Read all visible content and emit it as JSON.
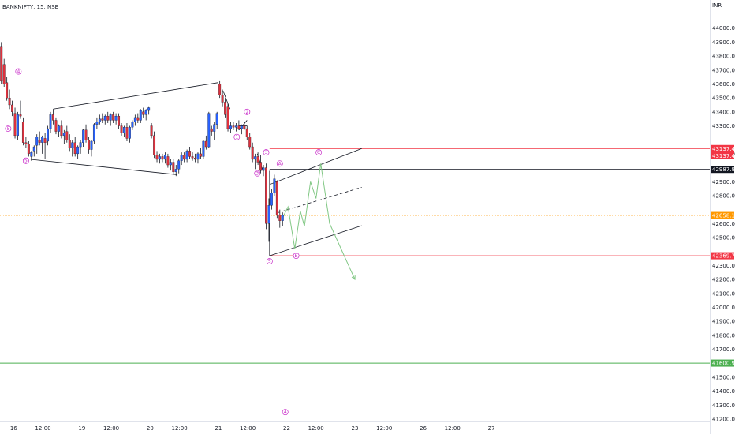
{
  "header": {
    "symbol_title": "BANKNIFTY, 15, NSE",
    "currency": "INR"
  },
  "chart_data": {
    "type": "candlestick",
    "title": "BANKNIFTY, 15, NSE",
    "ylabel": "INR",
    "ylim": [
      41200,
      44100
    ],
    "xlim": [
      0,
      10.4
    ],
    "grid": false,
    "x_ticks": [
      {
        "label": "16",
        "x": 0.2
      },
      {
        "label": "12:00",
        "x": 0.63
      },
      {
        "label": "19",
        "x": 1.2
      },
      {
        "label": "12:00",
        "x": 1.63
      },
      {
        "label": "20",
        "x": 2.2
      },
      {
        "label": "12:00",
        "x": 2.63
      },
      {
        "label": "21",
        "x": 3.2
      },
      {
        "label": "12:00",
        "x": 3.63
      },
      {
        "label": "22",
        "x": 4.2
      },
      {
        "label": "12:00",
        "x": 4.63
      },
      {
        "label": "23",
        "x": 5.2
      },
      {
        "label": "12:00",
        "x": 5.63
      },
      {
        "label": "26",
        "x": 6.2
      },
      {
        "label": "12:00",
        "x": 6.63
      },
      {
        "label": "27",
        "x": 7.2
      }
    ],
    "y_ticks": [
      44000,
      43900,
      43800,
      43700,
      43600,
      43500,
      43400,
      43300,
      43100,
      42900,
      42800,
      42600,
      42500,
      42300,
      42200,
      42100,
      42000,
      41900,
      41800,
      41700,
      41500,
      41400,
      41300,
      41200
    ],
    "y_tick_labels": [
      "44000.00",
      "43900.00",
      "43800.00",
      "43700.00",
      "43600.00",
      "43500.00",
      "43400.00",
      "43300.00",
      "43100.00",
      "42900.00",
      "42800.00",
      "42600.00",
      "42500.00",
      "42300.00",
      "42200.00",
      "42100.00",
      "42000.00",
      "41900.00",
      "41800.00",
      "41700.00",
      "41500.00",
      "41400.00",
      "41300.00",
      "41200.00"
    ],
    "price_labels": [
      {
        "text": "43137.40",
        "value": 43137.4,
        "bg": "#f23645",
        "fg": "#ffffff"
      },
      {
        "text": "43137.40",
        "value": 43137.4,
        "bg": "#f23645",
        "fg": "#ffffff"
      },
      {
        "text": "42987.95",
        "value": 42987.95,
        "bg": "#131722",
        "fg": "#ffffff"
      },
      {
        "text": "42658.15",
        "value": 42658.15,
        "bg": "#ff9800",
        "fg": "#ffffff"
      },
      {
        "text": "42369.70",
        "value": 42369.7,
        "bg": "#f23645",
        "fg": "#ffffff"
      },
      {
        "text": "41600.95",
        "value": 41600.95,
        "bg": "#4caf50",
        "fg": "#ffffff"
      }
    ],
    "horizontal_lines": [
      {
        "value": 43137.4,
        "color": "#f23645",
        "x_start": 3.95
      },
      {
        "value": 42987.95,
        "color": "#131722",
        "x_start": 3.95
      },
      {
        "value": 42658.15,
        "color": "#ffb74d",
        "x_start": 0,
        "style": "dotted"
      },
      {
        "value": 42369.7,
        "color": "#f23645",
        "x_start": 3.95
      },
      {
        "value": 41600.95,
        "color": "#4caf50",
        "x_start": 0
      }
    ],
    "trend_lines": [
      {
        "x1": 0.78,
        "y1": 43420,
        "x2": 3.2,
        "y2": 43610,
        "color": "#131722"
      },
      {
        "x1": 0.45,
        "y1": 43060,
        "x2": 2.6,
        "y2": 42950,
        "color": "#131722"
      },
      {
        "x1": 3.27,
        "y1": 43550,
        "x2": 3.37,
        "y2": 43420,
        "color": "#131722"
      },
      {
        "x1": 3.5,
        "y1": 43270,
        "x2": 3.62,
        "y2": 43340,
        "color": "#131722"
      },
      {
        "x1": 3.5,
        "y1": 43300,
        "x2": 3.62,
        "y2": 43300,
        "color": "#131722"
      },
      {
        "x1": 3.77,
        "y1": 43100,
        "x2": 3.85,
        "y2": 42980,
        "color": "#131722"
      },
      {
        "x1": 3.95,
        "y1": 42880,
        "x2": 5.3,
        "y2": 43137.4,
        "color": "#131722"
      },
      {
        "x1": 3.95,
        "y1": 42369.7,
        "x2": 5.3,
        "y2": 42585,
        "color": "#131722"
      },
      {
        "x1": 4.05,
        "y1": 42675,
        "x2": 5.3,
        "y2": 42860,
        "color": "#131722",
        "style": "dashed"
      },
      {
        "x1": 3.95,
        "y1": 42369.7,
        "x2": 3.95,
        "y2": 42978,
        "color": "#131722"
      }
    ],
    "projection_path": {
      "color": "#81c784",
      "points": [
        [
          4.15,
          42650
        ],
        [
          4.22,
          42720
        ],
        [
          4.32,
          42420
        ],
        [
          4.4,
          42690
        ],
        [
          4.46,
          42580
        ],
        [
          4.55,
          42900
        ],
        [
          4.63,
          42780
        ],
        [
          4.7,
          43030
        ],
        [
          4.83,
          42600
        ],
        [
          5.2,
          42200
        ]
      ]
    },
    "wave_labels": [
      {
        "text": "4",
        "x": 0.27,
        "y": 43690
      },
      {
        "text": "5",
        "x": 0.12,
        "y": 43280
      },
      {
        "text": "5",
        "x": 0.38,
        "y": 43050
      },
      {
        "text": "2",
        "x": 3.62,
        "y": 43400
      },
      {
        "text": "1",
        "x": 3.47,
        "y": 43220
      },
      {
        "text": "3",
        "x": 3.9,
        "y": 43110
      },
      {
        "text": "3",
        "x": 3.77,
        "y": 42960
      },
      {
        "text": "5",
        "x": 3.95,
        "y": 42330
      },
      {
        "text": "A",
        "x": 4.1,
        "y": 43030
      },
      {
        "text": "B",
        "x": 4.34,
        "y": 42370
      },
      {
        "text": "C",
        "x": 4.67,
        "y": 43110
      },
      {
        "text": "4",
        "x": 4.18,
        "y": 41250
      }
    ],
    "candles": [
      {
        "x": 0.02,
        "o": 43870,
        "h": 43900,
        "l": 43600,
        "c": 43620
      },
      {
        "x": 0.06,
        "o": 43740,
        "h": 43780,
        "l": 43580,
        "c": 43600
      },
      {
        "x": 0.1,
        "o": 43610,
        "h": 43650,
        "l": 43480,
        "c": 43500
      },
      {
        "x": 0.14,
        "o": 43500,
        "h": 43560,
        "l": 43420,
        "c": 43450
      },
      {
        "x": 0.18,
        "o": 43450,
        "h": 43480,
        "l": 43370,
        "c": 43400
      },
      {
        "x": 0.22,
        "o": 43390,
        "h": 43430,
        "l": 43210,
        "c": 43230
      },
      {
        "x": 0.26,
        "o": 43230,
        "h": 43400,
        "l": 43200,
        "c": 43380
      },
      {
        "x": 0.3,
        "o": 43380,
        "h": 43480,
        "l": 43350,
        "c": 43370
      },
      {
        "x": 0.34,
        "o": 43330,
        "h": 43360,
        "l": 43160,
        "c": 43180
      },
      {
        "x": 0.38,
        "o": 43180,
        "h": 43220,
        "l": 43140,
        "c": 43170
      },
      {
        "x": 0.42,
        "o": 43170,
        "h": 43190,
        "l": 43080,
        "c": 43100
      },
      {
        "x": 0.46,
        "o": 43080,
        "h": 43120,
        "l": 43050,
        "c": 43110
      },
      {
        "x": 0.5,
        "o": 43120,
        "h": 43160,
        "l": 43080,
        "c": 43150
      },
      {
        "x": 0.54,
        "o": 43160,
        "h": 43240,
        "l": 43100,
        "c": 43220
      },
      {
        "x": 0.58,
        "o": 43200,
        "h": 43260,
        "l": 43160,
        "c": 43180
      },
      {
        "x": 0.62,
        "o": 43180,
        "h": 43230,
        "l": 43100,
        "c": 43220
      },
      {
        "x": 0.66,
        "o": 43210,
        "h": 43250,
        "l": 43060,
        "c": 43180
      },
      {
        "x": 0.7,
        "o": 43190,
        "h": 43300,
        "l": 43160,
        "c": 43280
      },
      {
        "x": 0.74,
        "o": 43280,
        "h": 43400,
        "l": 43250,
        "c": 43380
      },
      {
        "x": 0.78,
        "o": 43380,
        "h": 43420,
        "l": 43310,
        "c": 43340
      },
      {
        "x": 0.82,
        "o": 43340,
        "h": 43360,
        "l": 43240,
        "c": 43260
      },
      {
        "x": 0.86,
        "o": 43260,
        "h": 43310,
        "l": 43220,
        "c": 43300
      },
      {
        "x": 0.9,
        "o": 43300,
        "h": 43340,
        "l": 43210,
        "c": 43230
      },
      {
        "x": 0.94,
        "o": 43230,
        "h": 43270,
        "l": 43170,
        "c": 43250
      },
      {
        "x": 0.98,
        "o": 43260,
        "h": 43300,
        "l": 43180,
        "c": 43200
      },
      {
        "x": 1.02,
        "o": 43200,
        "h": 43240,
        "l": 43120,
        "c": 43140
      },
      {
        "x": 1.06,
        "o": 43140,
        "h": 43200,
        "l": 43080,
        "c": 43180
      },
      {
        "x": 1.1,
        "o": 43180,
        "h": 43220,
        "l": 43080,
        "c": 43100
      },
      {
        "x": 1.14,
        "o": 43100,
        "h": 43160,
        "l": 43060,
        "c": 43150
      },
      {
        "x": 1.18,
        "o": 43150,
        "h": 43200,
        "l": 43100,
        "c": 43180
      },
      {
        "x": 1.22,
        "o": 43180,
        "h": 43280,
        "l": 43150,
        "c": 43270
      },
      {
        "x": 1.26,
        "o": 43270,
        "h": 43310,
        "l": 43180,
        "c": 43200
      },
      {
        "x": 1.3,
        "o": 43200,
        "h": 43220,
        "l": 43100,
        "c": 43130
      },
      {
        "x": 1.34,
        "o": 43130,
        "h": 43200,
        "l": 43080,
        "c": 43190
      },
      {
        "x": 1.38,
        "o": 43190,
        "h": 43320,
        "l": 43170,
        "c": 43310
      },
      {
        "x": 1.42,
        "o": 43310,
        "h": 43360,
        "l": 43280,
        "c": 43330
      },
      {
        "x": 1.46,
        "o": 43330,
        "h": 43380,
        "l": 43310,
        "c": 43350
      },
      {
        "x": 1.5,
        "o": 43350,
        "h": 43390,
        "l": 43320,
        "c": 43340
      },
      {
        "x": 1.54,
        "o": 43340,
        "h": 43380,
        "l": 43310,
        "c": 43370
      },
      {
        "x": 1.58,
        "o": 43370,
        "h": 43400,
        "l": 43320,
        "c": 43340
      },
      {
        "x": 1.62,
        "o": 43340,
        "h": 43390,
        "l": 43300,
        "c": 43380
      },
      {
        "x": 1.66,
        "o": 43380,
        "h": 43400,
        "l": 43320,
        "c": 43340
      },
      {
        "x": 1.7,
        "o": 43340,
        "h": 43390,
        "l": 43310,
        "c": 43370
      },
      {
        "x": 1.74,
        "o": 43370,
        "h": 43390,
        "l": 43280,
        "c": 43300
      },
      {
        "x": 1.78,
        "o": 43300,
        "h": 43320,
        "l": 43230,
        "c": 43250
      },
      {
        "x": 1.82,
        "o": 43250,
        "h": 43300,
        "l": 43220,
        "c": 43290
      },
      {
        "x": 1.86,
        "o": 43290,
        "h": 43320,
        "l": 43190,
        "c": 43210
      },
      {
        "x": 1.9,
        "o": 43210,
        "h": 43300,
        "l": 43180,
        "c": 43290
      },
      {
        "x": 1.94,
        "o": 43290,
        "h": 43340,
        "l": 43270,
        "c": 43330
      },
      {
        "x": 1.98,
        "o": 43330,
        "h": 43380,
        "l": 43300,
        "c": 43360
      },
      {
        "x": 2.02,
        "o": 43360,
        "h": 43390,
        "l": 43320,
        "c": 43340
      },
      {
        "x": 2.06,
        "o": 43340,
        "h": 43420,
        "l": 43320,
        "c": 43410
      },
      {
        "x": 2.1,
        "o": 43400,
        "h": 43430,
        "l": 43360,
        "c": 43380
      },
      {
        "x": 2.14,
        "o": 43380,
        "h": 43420,
        "l": 43340,
        "c": 43410
      },
      {
        "x": 2.18,
        "o": 43410,
        "h": 43440,
        "l": 43380,
        "c": 43430
      },
      {
        "x": 2.22,
        "o": 43300,
        "h": 43320,
        "l": 43210,
        "c": 43230
      },
      {
        "x": 2.26,
        "o": 43230,
        "h": 43260,
        "l": 43070,
        "c": 43090
      },
      {
        "x": 2.3,
        "o": 43090,
        "h": 43120,
        "l": 43040,
        "c": 43060
      },
      {
        "x": 2.34,
        "o": 43060,
        "h": 43100,
        "l": 43030,
        "c": 43080
      },
      {
        "x": 2.38,
        "o": 43080,
        "h": 43100,
        "l": 43040,
        "c": 43060
      },
      {
        "x": 2.42,
        "o": 43060,
        "h": 43110,
        "l": 43030,
        "c": 43090
      },
      {
        "x": 2.46,
        "o": 43080,
        "h": 43100,
        "l": 43000,
        "c": 43020
      },
      {
        "x": 2.5,
        "o": 43020,
        "h": 43060,
        "l": 42980,
        "c": 43040
      },
      {
        "x": 2.54,
        "o": 43040,
        "h": 43060,
        "l": 42950,
        "c": 42970
      },
      {
        "x": 2.58,
        "o": 42970,
        "h": 43020,
        "l": 42940,
        "c": 42990
      },
      {
        "x": 2.62,
        "o": 42990,
        "h": 43060,
        "l": 42960,
        "c": 43050
      },
      {
        "x": 2.66,
        "o": 43050,
        "h": 43110,
        "l": 43020,
        "c": 43090
      },
      {
        "x": 2.7,
        "o": 43090,
        "h": 43110,
        "l": 43040,
        "c": 43060
      },
      {
        "x": 2.74,
        "o": 43060,
        "h": 43130,
        "l": 43040,
        "c": 43120
      },
      {
        "x": 2.78,
        "o": 43120,
        "h": 43150,
        "l": 43060,
        "c": 43080
      },
      {
        "x": 2.82,
        "o": 43080,
        "h": 43110,
        "l": 43050,
        "c": 43070
      },
      {
        "x": 2.86,
        "o": 43070,
        "h": 43100,
        "l": 43040,
        "c": 43060
      },
      {
        "x": 2.9,
        "o": 43060,
        "h": 43110,
        "l": 43030,
        "c": 43100
      },
      {
        "x": 2.94,
        "o": 43100,
        "h": 43140,
        "l": 43060,
        "c": 43080
      },
      {
        "x": 2.98,
        "o": 43080,
        "h": 43200,
        "l": 43060,
        "c": 43190
      },
      {
        "x": 3.02,
        "o": 43190,
        "h": 43230,
        "l": 43130,
        "c": 43150
      },
      {
        "x": 3.06,
        "o": 43150,
        "h": 43400,
        "l": 43140,
        "c": 43390
      },
      {
        "x": 3.1,
        "o": 43280,
        "h": 43300,
        "l": 43230,
        "c": 43260
      },
      {
        "x": 3.14,
        "o": 43260,
        "h": 43330,
        "l": 43200,
        "c": 43310
      },
      {
        "x": 3.18,
        "o": 43310,
        "h": 43400,
        "l": 43280,
        "c": 43390
      },
      {
        "x": 3.22,
        "o": 43600,
        "h": 43620,
        "l": 43500,
        "c": 43520
      },
      {
        "x": 3.26,
        "o": 43520,
        "h": 43560,
        "l": 43440,
        "c": 43470
      },
      {
        "x": 3.3,
        "o": 43470,
        "h": 43500,
        "l": 43360,
        "c": 43380
      },
      {
        "x": 3.34,
        "o": 43440,
        "h": 43460,
        "l": 43260,
        "c": 43280
      },
      {
        "x": 3.38,
        "o": 43280,
        "h": 43330,
        "l": 43250,
        "c": 43300
      },
      {
        "x": 3.42,
        "o": 43300,
        "h": 43330,
        "l": 43270,
        "c": 43290
      },
      {
        "x": 3.46,
        "o": 43290,
        "h": 43320,
        "l": 43260,
        "c": 43300
      },
      {
        "x": 3.5,
        "o": 43300,
        "h": 43340,
        "l": 43270,
        "c": 43280
      },
      {
        "x": 3.54,
        "o": 43280,
        "h": 43310,
        "l": 43240,
        "c": 43300
      },
      {
        "x": 3.58,
        "o": 43300,
        "h": 43330,
        "l": 43270,
        "c": 43280
      },
      {
        "x": 3.62,
        "o": 43280,
        "h": 43300,
        "l": 43200,
        "c": 43220
      },
      {
        "x": 3.66,
        "o": 43220,
        "h": 43250,
        "l": 43130,
        "c": 43150
      },
      {
        "x": 3.7,
        "o": 43150,
        "h": 43180,
        "l": 43040,
        "c": 43060
      },
      {
        "x": 3.74,
        "o": 43060,
        "h": 43100,
        "l": 42990,
        "c": 43080
      },
      {
        "x": 3.78,
        "o": 43080,
        "h": 43110,
        "l": 43020,
        "c": 43040
      },
      {
        "x": 3.82,
        "o": 43040,
        "h": 43090,
        "l": 42960,
        "c": 42980
      },
      {
        "x": 3.86,
        "o": 42980,
        "h": 43020,
        "l": 42940,
        "c": 43000
      },
      {
        "x": 3.9,
        "o": 43000,
        "h": 43030,
        "l": 42560,
        "c": 42600
      },
      {
        "x": 3.94,
        "o": 42600,
        "h": 42780,
        "l": 42470,
        "c": 42730
      },
      {
        "x": 3.98,
        "o": 42730,
        "h": 42850,
        "l": 42700,
        "c": 42820
      },
      {
        "x": 4.02,
        "o": 42820,
        "h": 42950,
        "l": 42800,
        "c": 42920
      },
      {
        "x": 4.06,
        "o": 42900,
        "h": 42910,
        "l": 42640,
        "c": 42660
      },
      {
        "x": 4.1,
        "o": 42660,
        "h": 42700,
        "l": 42570,
        "c": 42620
      },
      {
        "x": 4.14,
        "o": 42620,
        "h": 42680,
        "l": 42580,
        "c": 42660
      }
    ]
  }
}
